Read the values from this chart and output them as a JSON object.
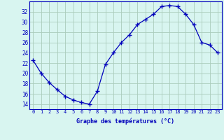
{
  "hours": [
    0,
    1,
    2,
    3,
    4,
    5,
    6,
    7,
    8,
    9,
    10,
    11,
    12,
    13,
    14,
    15,
    16,
    17,
    18,
    19,
    20,
    21,
    22,
    23
  ],
  "temps": [
    22.5,
    20.0,
    18.2,
    16.8,
    15.5,
    14.8,
    14.3,
    14.0,
    16.5,
    21.7,
    24.0,
    26.0,
    27.5,
    29.5,
    30.5,
    31.5,
    33.0,
    33.2,
    33.0,
    31.5,
    29.5,
    26.0,
    25.5,
    24.0
  ],
  "line_color": "#0000bb",
  "marker": "+",
  "marker_size": 4,
  "bg_color": "#d8f5f0",
  "grid_color": "#aaccbb",
  "xlabel": "Graphe des températures (°C)",
  "xlabel_color": "#0000bb",
  "tick_color": "#0000bb",
  "yticks": [
    14,
    16,
    18,
    20,
    22,
    24,
    26,
    28,
    30,
    32
  ],
  "ylim": [
    13.0,
    34.0
  ],
  "xlim": [
    -0.5,
    23.5
  ],
  "xtick_labels": [
    "0",
    "1",
    "2",
    "3",
    "4",
    "5",
    "6",
    "7",
    "8",
    "9",
    "10",
    "11",
    "12",
    "13",
    "14",
    "15",
    "16",
    "17",
    "18",
    "19",
    "20",
    "21",
    "22",
    "23"
  ]
}
